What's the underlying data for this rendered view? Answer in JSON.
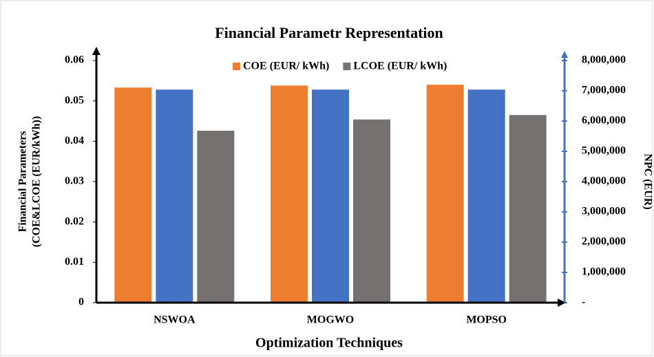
{
  "chart_data": {
    "type": "bar",
    "title": "Financial Parametr Representation",
    "xlabel": "Optimization Techniques",
    "ylabel": [
      "Financial Parameters",
      "(COE&LCOE (EUR/kWh))"
    ],
    "y2label": "NPC (EUR)",
    "categories": [
      "NSWOA",
      "MOGWO",
      "MOPSO"
    ],
    "series": [
      {
        "name": "COE (EUR/ kWh)",
        "color": "#ed7d31",
        "values": [
          0.0533,
          0.0538,
          0.054
        ]
      },
      {
        "color": "#4472c4",
        "axis": "y2",
        "values": [
          7040000,
          7040000,
          7040000
        ]
      },
      {
        "name": "LCOE (EUR/ kWh)",
        "color": "#767171",
        "values": [
          0.0426,
          0.0454,
          0.0465
        ]
      }
    ],
    "ylim": [
      0,
      0.06
    ],
    "yticks": [
      0,
      0.01,
      0.02,
      0.03,
      0.04,
      0.05,
      0.06
    ],
    "y2lim": [
      0,
      8000000
    ],
    "y2ticks": [
      {
        "value": 0,
        "label": "-"
      },
      {
        "value": 1000000,
        "label": "1,000,000"
      },
      {
        "value": 2000000,
        "label": "2,000,000"
      },
      {
        "value": 3000000,
        "label": "3,000,000"
      },
      {
        "value": 4000000,
        "label": "4,000,000"
      },
      {
        "value": 5000000,
        "label": "5,000,000"
      },
      {
        "value": 6000000,
        "label": "6,000,000"
      },
      {
        "value": 7000000,
        "label": "7,000,000"
      },
      {
        "value": 8000000,
        "label": "8,000,000"
      }
    ],
    "legend": "top"
  }
}
